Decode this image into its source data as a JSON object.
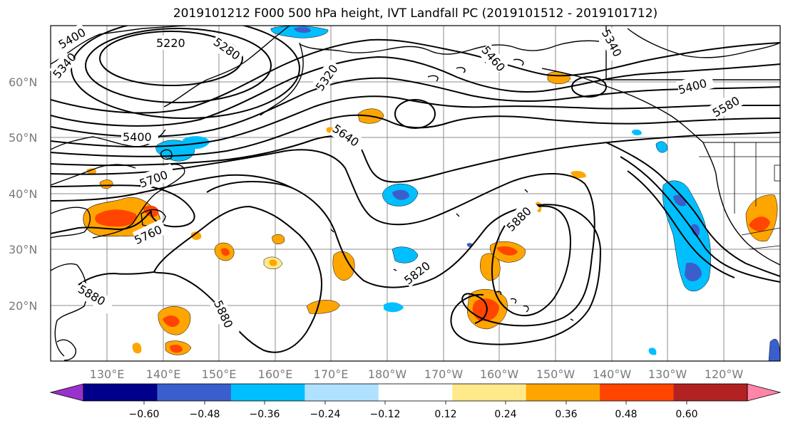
{
  "title": "2019101212 F000 500 hPa height, IVT Landfall PC (2019101512 - 2019101712)",
  "lat_labels": [
    "60°N",
    "50°N",
    "40°N",
    "30°N",
    "20°N"
  ],
  "lon_labels": [
    "130°E",
    "140°E",
    "150°E",
    "160°E",
    "170°E",
    "180°W",
    "170°W",
    "160°W",
    "150°W",
    "140°W",
    "130°W",
    "120°W"
  ],
  "contour_labels": [
    "5400",
    "5340",
    "5220",
    "5280",
    "5320",
    "5340",
    "5460",
    "5400",
    "5580",
    "5400",
    "5640",
    "5700",
    "5760",
    "5880",
    "5820",
    "5880",
    "5880"
  ],
  "colorbar": {
    "ticks": [
      "−0.60",
      "−0.48",
      "−0.36",
      "−0.24",
      "−0.12",
      "0.12",
      "0.24",
      "0.36",
      "0.48",
      "0.60"
    ],
    "colors": [
      "#9932cc",
      "#00008b",
      "#3a5fcd",
      "#00bfff",
      "#b0e2ff",
      "#ffffff",
      "#ffe98a",
      "#ffa500",
      "#ff4500",
      "#b22222",
      "#ff85a8"
    ]
  }
}
